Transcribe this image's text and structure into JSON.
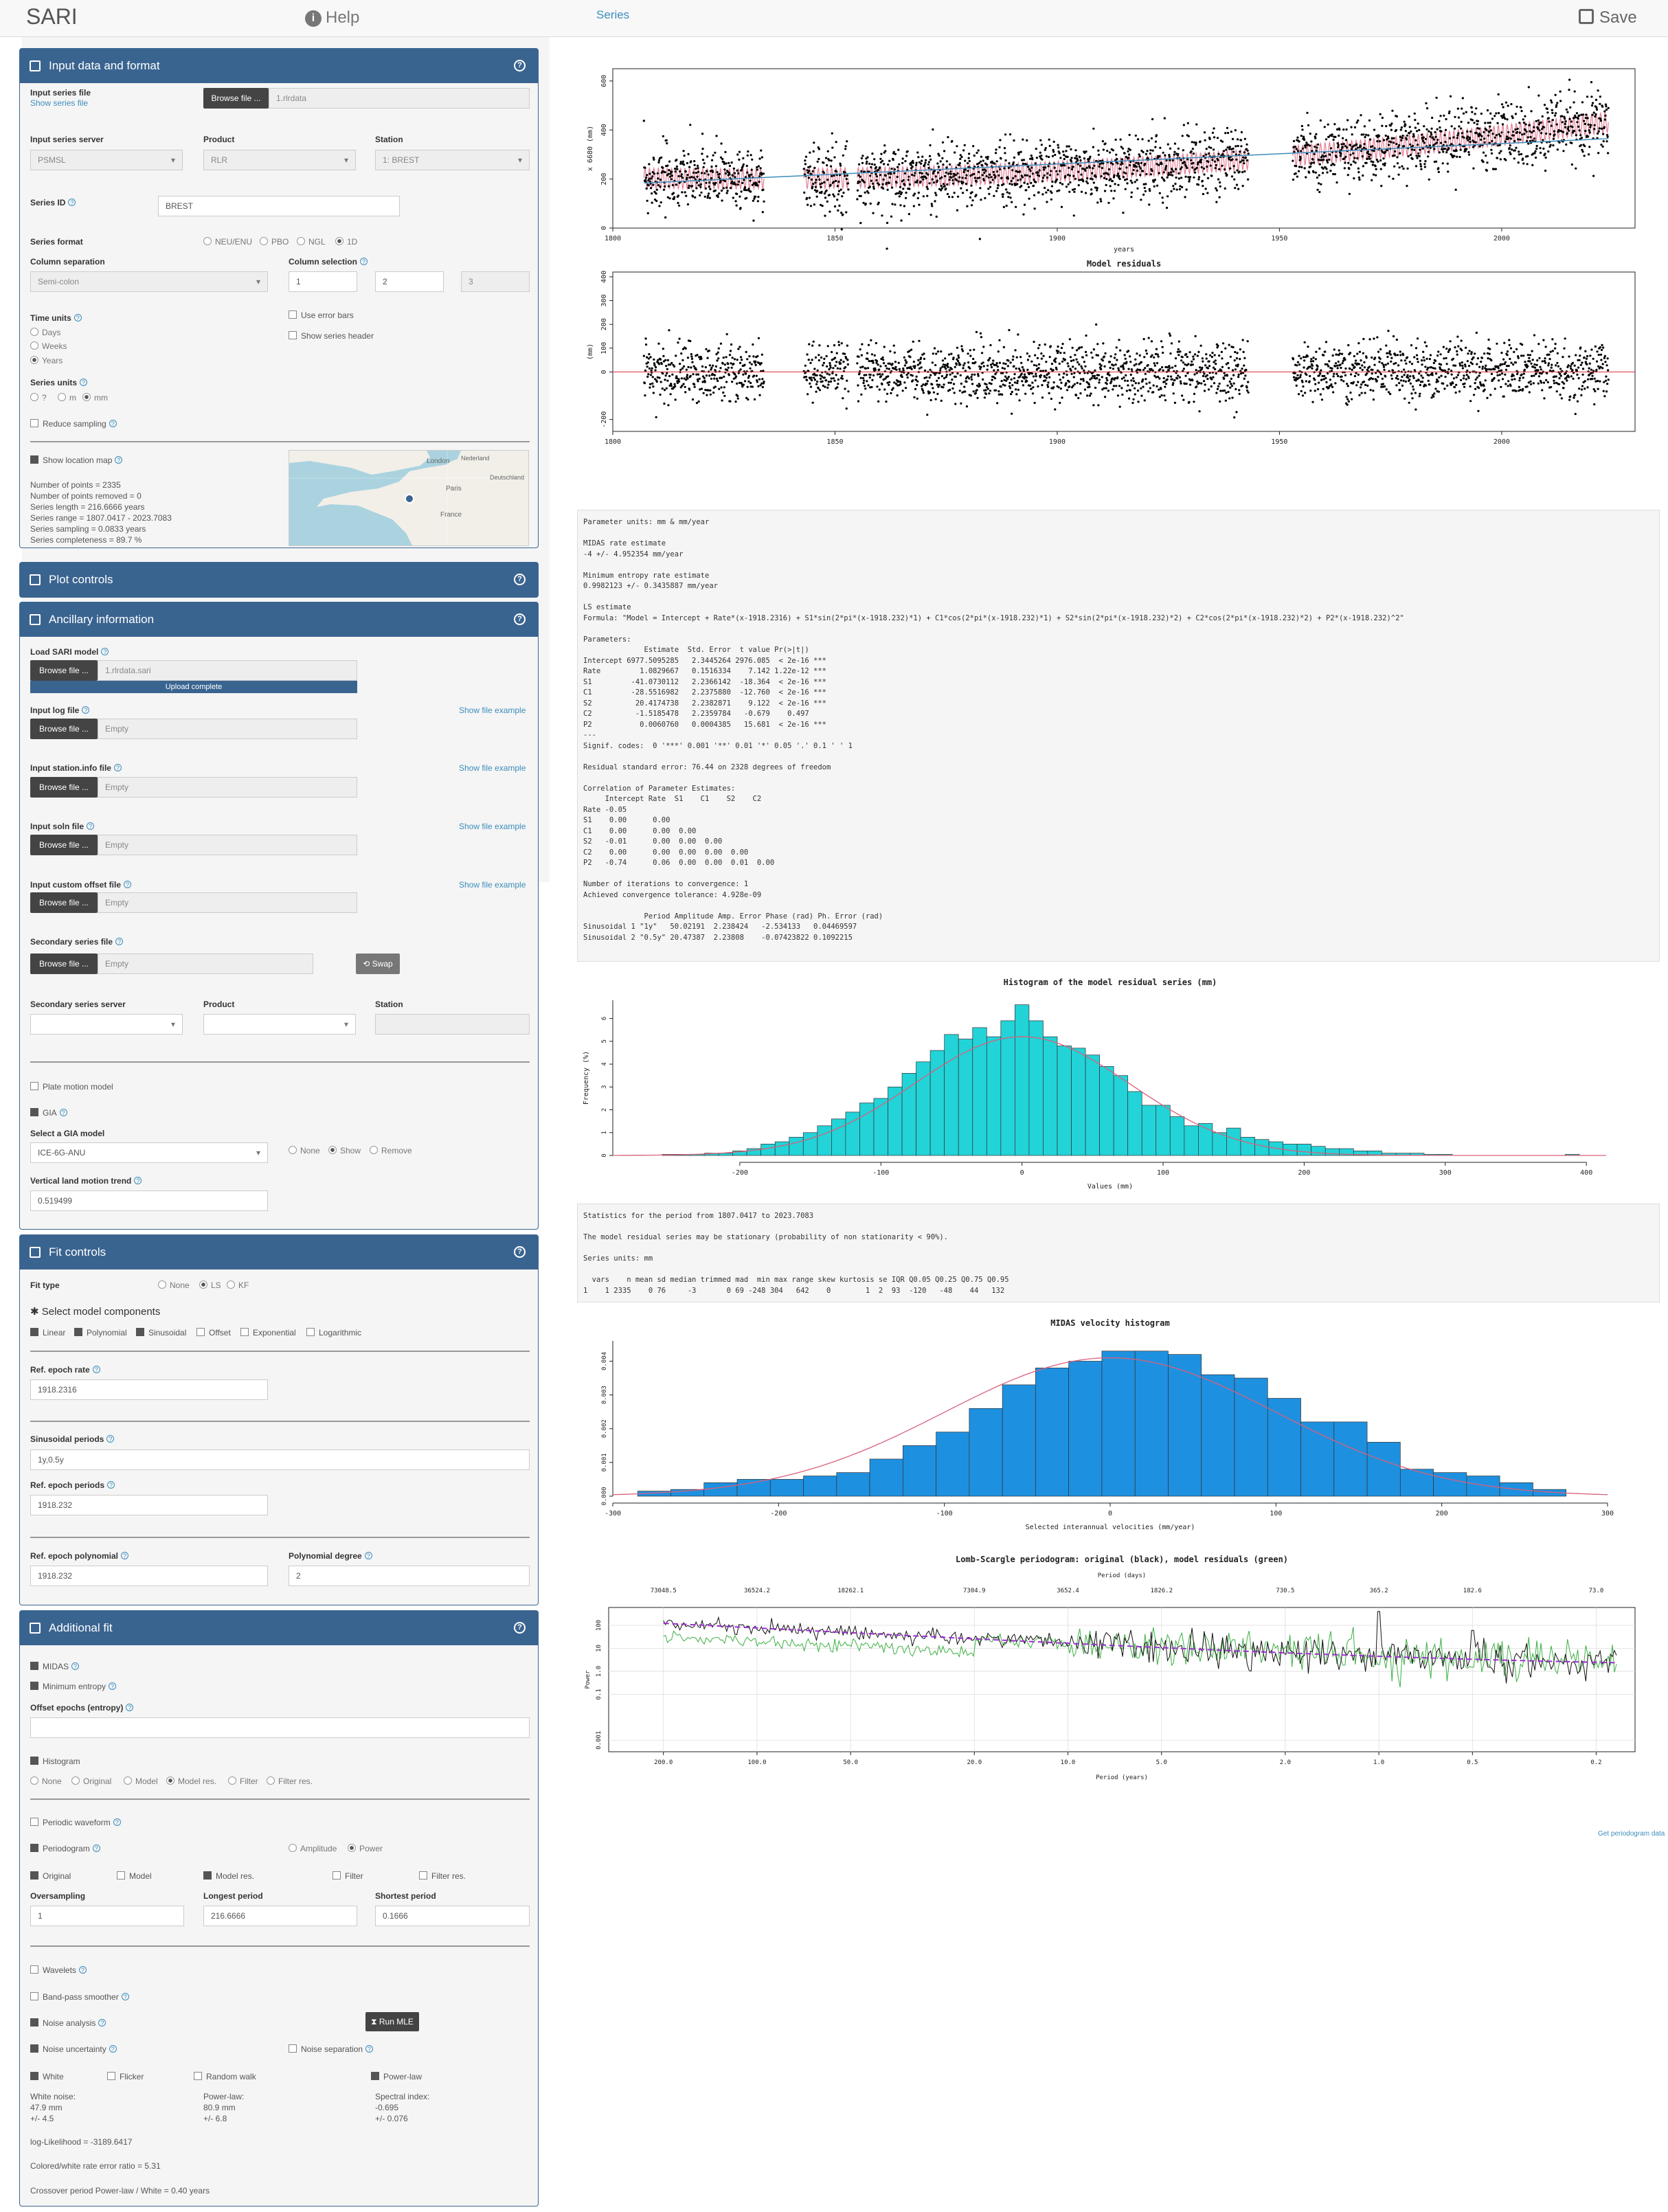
{
  "app": {
    "brand": "SARI",
    "help": "Help",
    "tab": "Series",
    "save": "Save"
  },
  "input_panel": {
    "title": "Input data and format",
    "series_file_label": "Input series file",
    "show_series_file": "Show series file",
    "browse": "Browse file ...",
    "file_name": "1.rlrdata",
    "server_label": "Input series server",
    "server_value": "PSMSL",
    "product_label": "Product",
    "product_value": "RLR",
    "station_label": "Station",
    "station_value": "1: BREST",
    "series_id_label": "Series ID",
    "series_id_value": "BREST",
    "format_label": "Series format",
    "formats": [
      "NEU/ENU",
      "PBO",
      "NGL",
      "1D"
    ],
    "colsep_label": "Column separation",
    "colsep_value": "Semi-colon",
    "colsel_label": "Column selection",
    "col1": "1",
    "col2": "2",
    "col3": "3",
    "error_bars": "Use error bars",
    "series_header": "Show series header",
    "time_units_label": "Time units",
    "time_units": [
      "Days",
      "Weeks",
      "Years"
    ],
    "series_units_label": "Series units",
    "series_units": [
      "?",
      "m",
      "mm"
    ],
    "reduce_sampling": "Reduce sampling",
    "show_map": "Show location map",
    "stats": [
      "Number of points = 2335",
      "Number of points removed = 0",
      "Series length = 216.6666 years",
      "Series range = 1807.0417 - 2023.7083",
      "Series sampling = 0.0833 years",
      "Series completeness = 89.7 %"
    ],
    "map_labels": [
      "London",
      "Nederland",
      "Paris",
      "Deutschland",
      "France"
    ]
  },
  "plot_controls": {
    "title": "Plot controls"
  },
  "ancillary": {
    "title": "Ancillary information",
    "load_model": "Load SARI model",
    "model_file": "1.rlrdata.sari",
    "upload": "Upload complete",
    "log_file": "Input log file",
    "station_info": "Input station.info file",
    "soln_file": "Input soln file",
    "custom_offset": "Input custom offset file",
    "empty": "Empty",
    "show_example": "Show file example",
    "secondary": "Secondary series file",
    "swap": "Swap",
    "sec_server": "Secondary series server",
    "sec_product": "Product",
    "sec_station": "Station",
    "plate_motion": "Plate motion model",
    "gia": "GIA",
    "gia_model_label": "Select a GIA model",
    "gia_model": "ICE-6G-ANU",
    "gia_opts": [
      "None",
      "Show",
      "Remove"
    ],
    "vlm_label": "Vertical land motion trend",
    "vlm_value": "0.519499"
  },
  "fit_controls": {
    "title": "Fit controls",
    "fit_type_label": "Fit type",
    "fit_types": [
      "None",
      "LS",
      "KF"
    ],
    "components_label": "Select model components",
    "components": [
      "Linear",
      "Polynomial",
      "Sinusoidal",
      "Offset",
      "Exponential",
      "Logarithmic"
    ],
    "ref_epoch_rate_label": "Ref. epoch rate",
    "ref_epoch_rate": "1918.2316",
    "sin_periods_label": "Sinusoidal periods",
    "sin_periods": "1y,0.5y",
    "ref_epoch_periods_label": "Ref. epoch periods",
    "ref_epoch_periods": "1918.232",
    "ref_epoch_poly_label": "Ref. epoch polynomial",
    "ref_epoch_poly": "1918.232",
    "poly_degree_label": "Polynomial degree",
    "poly_degree": "2"
  },
  "additional_fit": {
    "title": "Additional fit",
    "midas": "MIDAS",
    "min_entropy": "Minimum entropy",
    "offset_epochs_label": "Offset epochs (entropy)",
    "histogram": "Histogram",
    "hist_opts": [
      "None",
      "Original",
      "Model",
      "Model res.",
      "Filter",
      "Filter res."
    ],
    "periodic_waveform": "Periodic waveform",
    "periodogram": "Periodogram",
    "amp": "Amplitude",
    "power": "Power",
    "pg_opts": [
      "Original",
      "Model",
      "Model res.",
      "Filter",
      "Filter res."
    ],
    "oversampling_label": "Oversampling",
    "oversampling": "1",
    "longest_label": "Longest period",
    "longest": "216.6666",
    "shortest_label": "Shortest period",
    "shortest": "0.1666",
    "wavelets": "Wavelets",
    "bandpass": "Band-pass smoother",
    "noise_analysis": "Noise analysis",
    "run_mle": "Run MLE",
    "noise_uncertainty": "Noise uncertainty",
    "noise_separation": "Noise separation",
    "noise_models": [
      "White",
      "Flicker",
      "Random walk",
      "Power-law"
    ],
    "white_noise": "White noise:\n47.9 mm\n+/- 4.5",
    "power_law": "Power-law:\n80.9 mm\n+/- 6.8",
    "spectral_index": "Spectral index:\n-0.695\n+/- 0.076",
    "loglik": "log-Likelihood = -3189.6417",
    "ratio": "Colored/white rate error ratio = 5.31",
    "crossover": "Crossover period Power-law / White = 0.40 years"
  },
  "series_plot": {
    "ylabel": "x 6680 (mm)",
    "xlabel": "years",
    "yticks": [
      "0",
      "200",
      "400",
      "600"
    ],
    "xticks": [
      "1800",
      "1850",
      "1900",
      "1950",
      "2000"
    ]
  },
  "residual_plot": {
    "title": "Model residuals",
    "ylabel": "(mm)",
    "yticks": [
      "-200",
      "0",
      "100",
      "200",
      "300",
      "400"
    ],
    "xticks": [
      "1800",
      "1850",
      "1900",
      "1950",
      "2000"
    ]
  },
  "ls_text": "Parameter units: mm & mm/year\n\nMIDAS rate estimate\n-4 +/- 4.952354 mm/year\n\nMinimum entropy rate estimate\n0.9982123 +/- 0.3435887 mm/year\n\nLS estimate\nFormula: \"Model = Intercept + Rate*(x-1918.2316) + S1*sin(2*pi*(x-1918.232)*1) + C1*cos(2*pi*(x-1918.232)*1) + S2*sin(2*pi*(x-1918.232)*2) + C2*cos(2*pi*(x-1918.232)*2) + P2*(x-1918.232)^2\"\n\nParameters:\n              Estimate  Std. Error  t value Pr(>|t|)\nIntercept 6977.5095285   2.3445264 2976.085  < 2e-16 ***\nRate         1.0829667   0.1516334    7.142 1.22e-12 ***\nS1         -41.0730112   2.2366142  -18.364  < 2e-16 ***\nC1         -28.5516982   2.2375880  -12.760  < 2e-16 ***\nS2          20.4174738   2.2382871    9.122  < 2e-16 ***\nC2          -1.5185478   2.2359784   -0.679    0.497\nP2           0.0060760   0.0004385   15.681  < 2e-16 ***\n---\nSignif. codes:  0 '***' 0.001 '**' 0.01 '*' 0.05 '.' 0.1 ' ' 1\n\nResidual standard error: 76.44 on 2328 degrees of freedom\n\nCorrelation of Parameter Estimates:\n     Intercept Rate  S1    C1    S2    C2\nRate -0.05\nS1    0.00      0.00\nC1    0.00      0.00  0.00\nS2   -0.01      0.00  0.00  0.00\nC2    0.00      0.00  0.00  0.00  0.00\nP2   -0.74      0.06  0.00  0.00  0.01  0.00\n\nNumber of iterations to convergence: 1\nAchieved convergence tolerance: 4.928e-09\n\n              Period Amplitude Amp. Error Phase (rad) Ph. Error (rad)\nSinusoidal 1 \"1y\"   50.02191  2.238424   -2.534133   0.04469597\nSinusoidal 2 \"0.5y\" 20.47387  2.23808    -0.07423822 0.1092215",
  "hist_plot": {
    "title": "Histogram of the model residual series (mm)",
    "ylabel": "Frequency (%)",
    "xlabel": "Values (mm)",
    "yticks": [
      "0",
      "1",
      "2",
      "3",
      "4",
      "5",
      "6"
    ],
    "xticks": [
      "-200",
      "-100",
      "0",
      "100",
      "200",
      "300",
      "400"
    ]
  },
  "stats_text": "Statistics for the period from 1807.0417 to 2023.7083\n\nThe model residual series may be stationary (probability of non stationarity < 90%).\n\nSeries units: mm\n\n  vars    n mean sd median trimmed mad  min max range skew kurtosis se IQR Q0.05 Q0.25 Q0.75 Q0.95\n1    1 2335    0 76     -3       0 69 -248 304   642    0        1  2  93  -120   -48    44   132",
  "midas_plot": {
    "title": "MIDAS velocity histogram",
    "xlabel": "Selected interannual velocities (mm/year)",
    "yticks": [
      "0.000",
      "0.001",
      "0.002",
      "0.003",
      "0.004"
    ],
    "xticks": [
      "-300",
      "-200",
      "-100",
      "0",
      "100",
      "200",
      "300"
    ]
  },
  "lomb_plot": {
    "title": "Lomb-Scargle periodogram: original (black), model residuals (green)",
    "top_label": "Period (days)",
    "top_ticks": [
      "73048.5",
      "36524.2",
      "18262.1",
      "7304.9",
      "3652.4",
      "1826.2",
      "730.5",
      "365.2",
      "182.6",
      "73.0"
    ],
    "xlabel": "Period (years)",
    "xticks": [
      "200.0",
      "100.0",
      "50.0",
      "20.0",
      "10.0",
      "5.0",
      "2.0",
      "1.0",
      "0.5",
      "0.2"
    ],
    "ylabel": "Power",
    "yticks": [
      "0.001",
      "0.1",
      "1.0",
      "10",
      "100"
    ],
    "get_data": "Get periodogram data"
  },
  "chart_data": [
    {
      "type": "scatter",
      "xlabel": "years",
      "ylabel": "x 6680 (mm)",
      "xlim": [
        1800,
        2030
      ],
      "ylim": [
        0,
        650
      ],
      "segments": [
        [
          1807,
          1834
        ],
        [
          1843,
          1853
        ],
        [
          1855,
          1943
        ],
        [
          1953,
          2024
        ]
      ],
      "trend": "rising model, mean ~250 mm in 1810 to ~500 mm in 2023",
      "series": [
        {
          "name": "data",
          "color": "#000000"
        },
        {
          "name": "model",
          "color": "#e0708a"
        },
        {
          "name": "trend",
          "color": "#3c8dbc"
        }
      ]
    },
    {
      "type": "scatter",
      "title": "Model residuals",
      "ylabel": "(mm)",
      "xlim": [
        1800,
        2030
      ],
      "ylim": [
        -250,
        420
      ]
    },
    {
      "type": "bar",
      "title": "Histogram of the model residual series (mm)",
      "xlabel": "Values (mm)",
      "ylabel": "Frequency (%)",
      "ylim": [
        0,
        6.5
      ],
      "x": [
        -250,
        -240,
        -230,
        -220,
        -210,
        -200,
        -190,
        -180,
        -170,
        -160,
        -150,
        -140,
        -130,
        -120,
        -110,
        -100,
        -90,
        -80,
        -70,
        -60,
        -50,
        -40,
        -30,
        -20,
        -10,
        0,
        10,
        20,
        30,
        40,
        50,
        60,
        70,
        80,
        90,
        100,
        110,
        120,
        130,
        140,
        150,
        160,
        170,
        180,
        190,
        200,
        210,
        220,
        230,
        240,
        250,
        260,
        270,
        280,
        290,
        300,
        390
      ],
      "values": [
        0.05,
        0.05,
        0.05,
        0.1,
        0.1,
        0.2,
        0.3,
        0.5,
        0.6,
        0.8,
        1.0,
        1.3,
        1.6,
        1.9,
        2.3,
        2.5,
        3.0,
        3.6,
        4.1,
        4.6,
        5.3,
        5.1,
        5.6,
        5.2,
        5.9,
        6.6,
        5.9,
        5.2,
        4.8,
        4.7,
        4.4,
        3.9,
        3.5,
        2.8,
        2.2,
        2.2,
        1.7,
        1.3,
        1.4,
        1.0,
        1.2,
        0.8,
        0.7,
        0.6,
        0.5,
        0.5,
        0.4,
        0.3,
        0.3,
        0.2,
        0.2,
        0.1,
        0.1,
        0.1,
        0.05,
        0.05,
        0.05
      ],
      "fit": "normal, mean 0, sd 76"
    },
    {
      "type": "bar",
      "title": "MIDAS velocity histogram",
      "xlabel": "Selected interannual velocities (mm/year)",
      "ylim": [
        0,
        0.0045
      ],
      "x": [
        -275,
        -255,
        -235,
        -215,
        -195,
        -175,
        -155,
        -135,
        -115,
        -95,
        -75,
        -55,
        -35,
        -15,
        5,
        25,
        45,
        65,
        85,
        105,
        125,
        145,
        165,
        185,
        205,
        225,
        245,
        265
      ],
      "values": [
        0.00015,
        0.0002,
        0.0004,
        0.0005,
        0.0005,
        0.0006,
        0.0007,
        0.0011,
        0.0015,
        0.0019,
        0.0026,
        0.0033,
        0.0038,
        0.004,
        0.0043,
        0.0043,
        0.0042,
        0.0036,
        0.0035,
        0.0029,
        0.0022,
        0.0022,
        0.0016,
        0.0008,
        0.0007,
        0.0006,
        0.0004,
        0.0002
      ],
      "fit": "normal curve"
    },
    {
      "type": "line",
      "title": "Lomb-Scargle periodogram: original (black), model residuals (green)",
      "xlabel": "Period (years)",
      "ylabel": "Power",
      "log_x": true,
      "log_y": true,
      "series": [
        {
          "name": "original",
          "color": "#000000"
        },
        {
          "name": "model residuals",
          "color": "#3cb043"
        },
        {
          "name": "power-law fit",
          "color": "#9b30d0"
        }
      ]
    }
  ]
}
